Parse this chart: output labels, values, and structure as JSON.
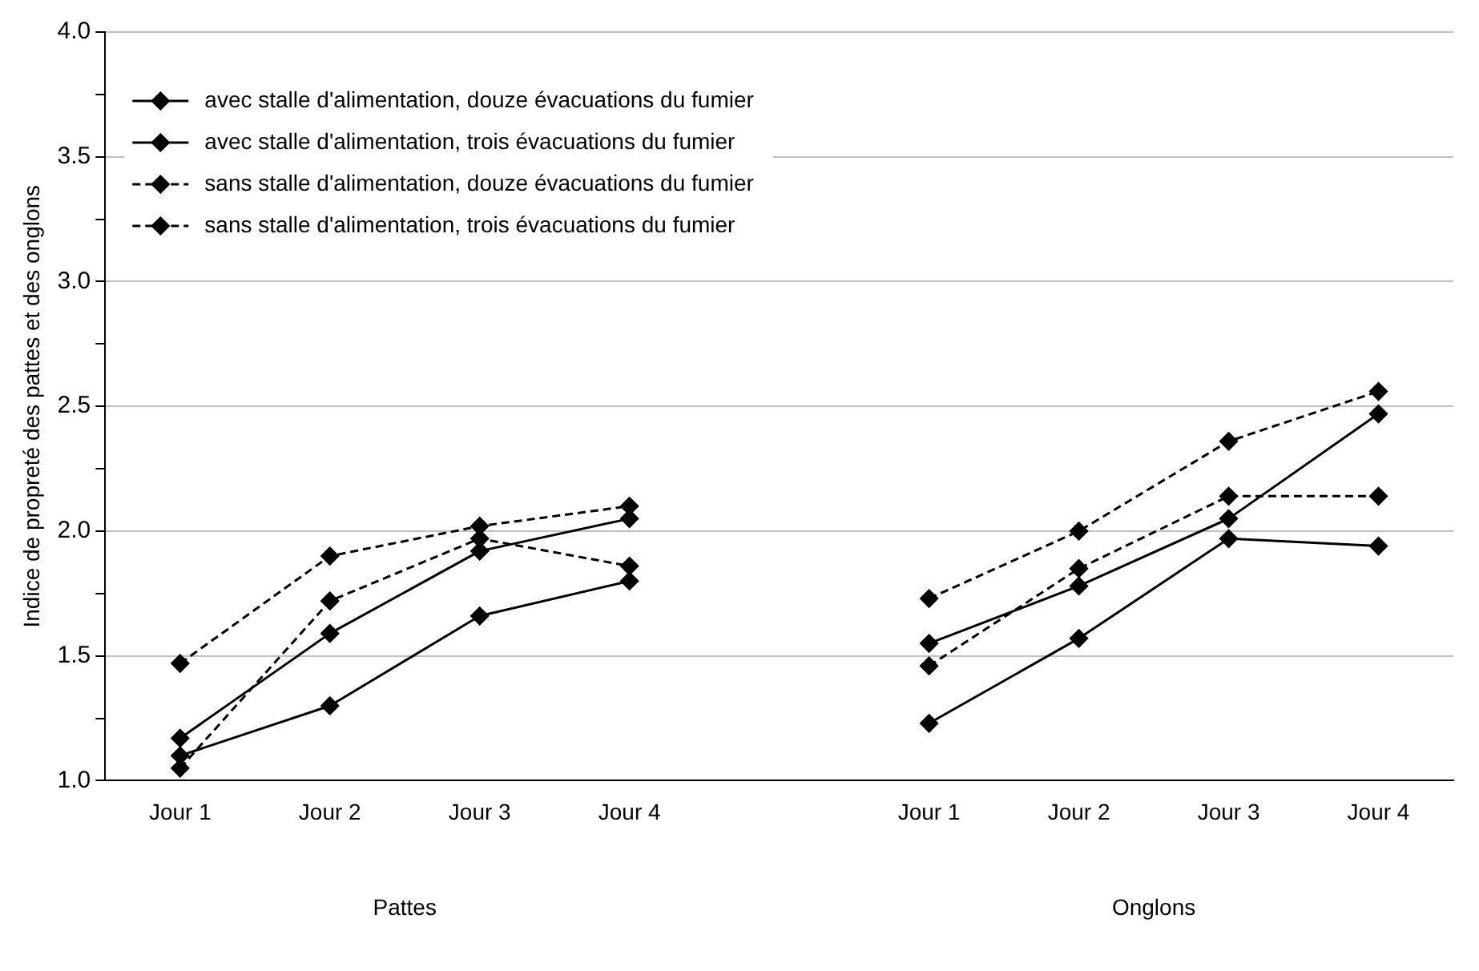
{
  "chart_data": {
    "type": "line",
    "ylabel": "Indice de propreté des pattes et des onglons",
    "categories": [
      "Jour 1",
      "Jour 2",
      "Jour 3",
      "Jour 4",
      null,
      "Jour 1",
      "Jour 2",
      "Jour 3",
      "Jour 4"
    ],
    "annotations": [
      "Pattes",
      "Onglons"
    ],
    "ylim": [
      1.0,
      4.0
    ],
    "yticks": [
      {
        "value": 1.0,
        "label": "1.0"
      },
      {
        "value": 1.25,
        "label": null
      },
      {
        "value": 1.5,
        "label": "1.5"
      },
      {
        "value": 1.75,
        "label": null
      },
      {
        "value": 2.0,
        "label": "2.0"
      },
      {
        "value": 2.25,
        "label": null
      },
      {
        "value": 2.5,
        "label": "2.5"
      },
      {
        "value": 2.75,
        "label": null
      },
      {
        "value": 3.0,
        "label": "3.0"
      },
      {
        "value": 3.25,
        "label": null
      },
      {
        "value": 3.5,
        "label": "3.5"
      },
      {
        "value": 3.75,
        "label": null
      },
      {
        "value": 4.0,
        "label": "4.0"
      }
    ],
    "grid": "y",
    "legend": "top left",
    "marker": "diamond",
    "series": [
      {
        "name": "avec stalle d'alimentation, douze évacuations du fumier",
        "color": "#000000",
        "line_style": "solid",
        "values": [
          1.1,
          1.3,
          1.66,
          1.8,
          null,
          1.23,
          1.57,
          1.97,
          1.94
        ]
      },
      {
        "name": "avec stalle d'alimentation, trois évacuations du fumier",
        "color": "#000000",
        "line_style": "solid",
        "values": [
          1.17,
          1.59,
          1.92,
          2.05,
          null,
          1.55,
          1.78,
          2.05,
          2.47
        ]
      },
      {
        "name": "sans stalle d'alimentation, douze évacuations du fumier",
        "color": "#000000",
        "line_style": "dashed",
        "values": [
          1.05,
          1.72,
          1.97,
          1.86,
          null,
          1.46,
          1.85,
          2.14,
          2.14
        ]
      },
      {
        "name": "sans stalle d'alimentation, trois évacuations du fumier",
        "color": "#000000",
        "line_style": "dashed",
        "values": [
          1.47,
          1.9,
          2.02,
          2.1,
          null,
          1.73,
          2.0,
          2.36,
          2.56
        ]
      }
    ]
  }
}
